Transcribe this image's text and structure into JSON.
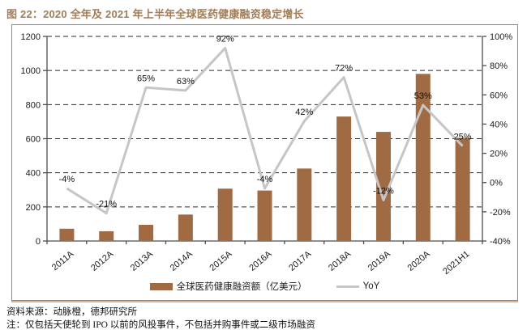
{
  "figure": {
    "title": "图 22：2020 全年及 2021 年上半年全球医药健康融资稳定增长",
    "source": "资料来源：动脉橙，德邦研究所",
    "note": "注：仅包括天使轮到 IPO 以前的风投事件，不包括并购事件或二级市场融资"
  },
  "colors": {
    "bar": "#A06A42",
    "line": "#C6C6C6",
    "title": "#A37D55",
    "box_border": "#8a8a8a",
    "box_shadow": "#d8b494"
  },
  "chart_data": {
    "type": "bar",
    "subtype": "bar+line combo, dual axis",
    "categories": [
      "2011A",
      "2012A",
      "2013A",
      "2014A",
      "2015A",
      "2016A",
      "2017A",
      "2018A",
      "2019A",
      "2020A",
      "2021H1"
    ],
    "series": [
      {
        "name": "全球医药健康融资额（亿美元）",
        "type": "bar",
        "axis": "left",
        "values": [
          72,
          57,
          95,
          155,
          307,
          296,
          425,
          730,
          640,
          980,
          605
        ]
      },
      {
        "name": "YoY",
        "type": "line",
        "axis": "right",
        "values": [
          -4,
          -21,
          65,
          63,
          92,
          -4,
          42,
          72,
          -12,
          53,
          25
        ]
      }
    ],
    "point_labels": [
      "-4%",
      "-21%",
      "65%",
      "63%",
      "92%",
      "-4%",
      "42%",
      "72%",
      "-12%",
      "53%",
      "25%"
    ],
    "left_axis": {
      "min": 0,
      "max": 1200,
      "step": 200,
      "ticks": [
        "0",
        "200",
        "400",
        "600",
        "800",
        "1000",
        "1200"
      ]
    },
    "right_axis": {
      "min": -40,
      "max": 100,
      "step": 20,
      "ticks": [
        "-40%",
        "-20%",
        "0%",
        "20%",
        "40%",
        "60%",
        "80%",
        "100%"
      ]
    },
    "grid": "horizontal dashed",
    "legend_position": "bottom center"
  }
}
